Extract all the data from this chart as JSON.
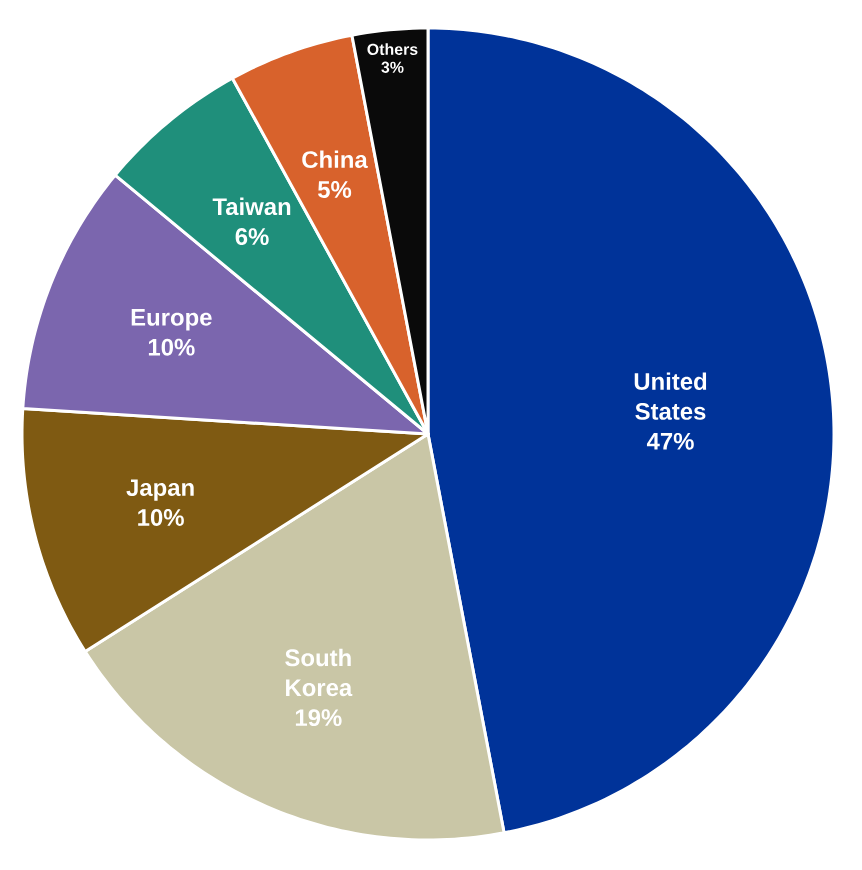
{
  "chart_data": {
    "type": "pie",
    "categories": [
      "United States",
      "South Korea",
      "Japan",
      "Europe",
      "Taiwan",
      "China",
      "Others"
    ],
    "values": [
      47,
      19,
      10,
      10,
      6,
      5,
      3
    ],
    "colors": [
      "#003399",
      "#c9c6a6",
      "#7f5a12",
      "#7b66ae",
      "#1f8f7b",
      "#d8622c",
      "#0a0a0a"
    ],
    "value_labels": [
      "47%",
      "19%",
      "10%",
      "10%",
      "6%",
      "5%",
      "3%"
    ]
  }
}
